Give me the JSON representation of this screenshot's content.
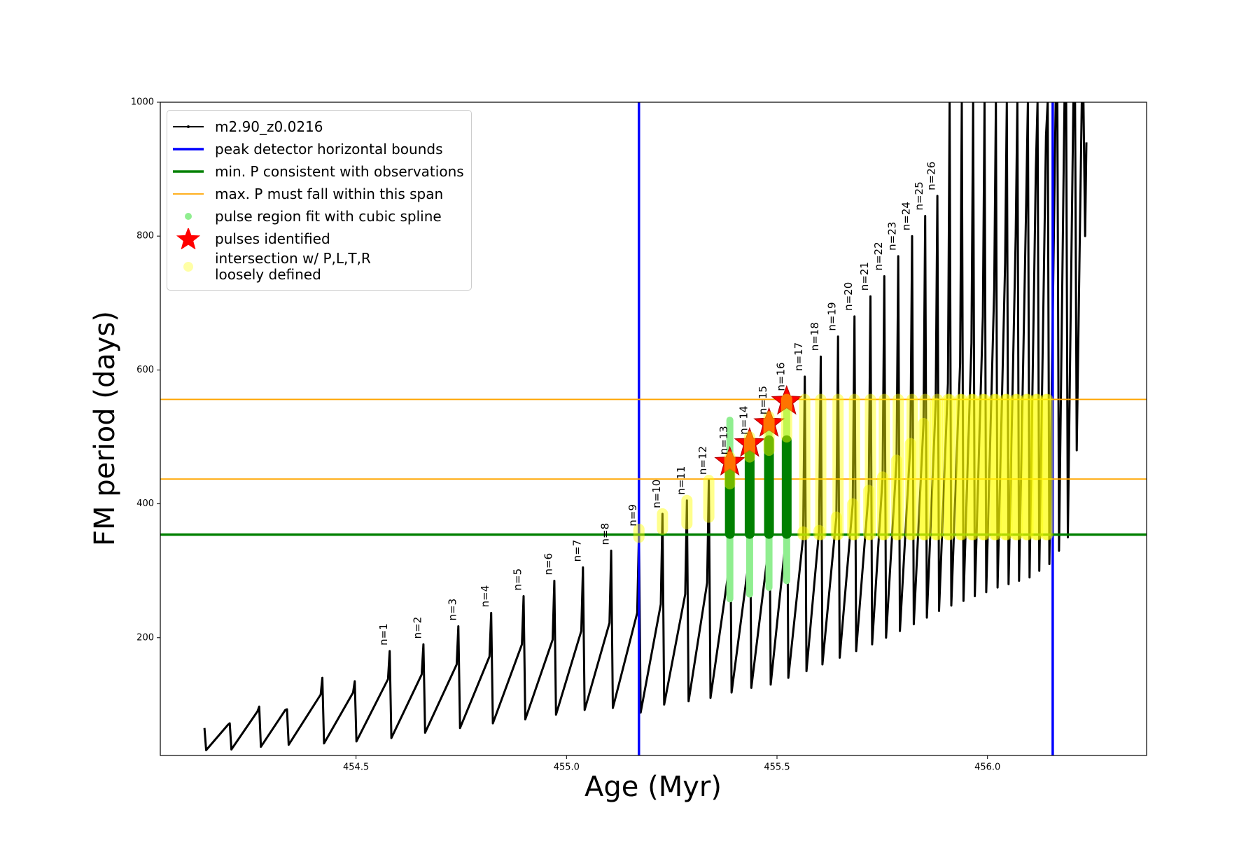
{
  "chart_data": {
    "type": "line",
    "xlabel": "Age (Myr)",
    "ylabel": "FM period (days)",
    "xlim": [
      454.035,
      456.378
    ],
    "ylim": [
      24,
      1000
    ],
    "xticks": [
      {
        "value": 454.5,
        "label": "454.5"
      },
      {
        "value": 455.0,
        "label": "455.0"
      },
      {
        "value": 455.5,
        "label": "455.5"
      },
      {
        "value": 456.0,
        "label": "456.0"
      }
    ],
    "yticks": [
      200,
      400,
      600,
      800,
      1000
    ],
    "grid": false,
    "legend": "upper left",
    "series": [
      {
        "name": "m2.90_z0.0216",
        "color": "#000000",
        "kind": "line",
        "x": [
          454.14,
          454.144,
          454.196,
          454.2,
          454.204,
          454.266,
          454.27,
          454.274,
          454.332,
          454.336,
          454.34,
          454.416,
          454.42,
          454.424,
          454.493,
          454.497,
          454.501,
          454.576,
          454.58,
          454.584,
          454.656,
          454.66,
          454.664,
          454.739,
          454.743,
          454.747,
          454.817,
          454.821,
          454.825,
          454.894,
          454.898,
          454.902,
          454.967,
          454.971,
          454.975,
          455.035,
          455.039,
          455.043,
          455.102,
          455.106,
          455.11,
          455.168,
          455.172,
          455.176,
          455.224,
          455.228,
          455.232,
          455.282,
          455.286,
          455.29,
          455.334,
          455.338,
          455.342,
          455.384,
          455.388,
          455.392,
          455.431,
          455.435,
          455.439,
          455.477,
          455.481,
          455.485,
          455.519,
          455.523,
          455.527,
          455.562,
          455.566,
          455.57,
          455.6,
          455.604,
          455.608,
          455.641,
          455.645,
          455.649,
          455.68,
          455.684,
          455.688,
          455.718,
          455.722,
          455.726,
          455.751,
          455.755,
          455.759,
          455.784,
          455.788,
          455.792,
          455.817,
          455.821,
          455.825,
          455.848,
          455.852,
          455.856,
          455.877,
          455.881,
          455.885,
          455.906,
          455.91,
          455.914,
          455.935,
          455.939,
          455.943,
          455.962,
          455.966,
          455.97,
          455.989,
          455.993,
          455.997,
          456.016,
          456.02,
          456.024,
          456.042,
          456.046,
          456.05,
          456.067,
          456.071,
          456.075,
          456.092,
          456.096,
          456.1,
          456.115,
          456.119,
          456.123,
          456.139,
          456.143,
          456.147,
          456.162,
          456.166,
          456.17,
          456.183,
          456.187,
          456.191,
          456.204,
          456.208,
          456.212,
          456.224,
          456.228,
          456.232,
          456.235
        ],
        "values": [
          65,
          32,
          70,
          72,
          33,
          90,
          97,
          37,
          92,
          93,
          40,
          115,
          140,
          42,
          118,
          135,
          45,
          138,
          180,
          50,
          145,
          190,
          58,
          160,
          217,
          65,
          172,
          237,
          72,
          190,
          262,
          78,
          197,
          285,
          85,
          210,
          305,
          92,
          222,
          330,
          95,
          237,
          358,
          88,
          250,
          385,
          100,
          265,
          405,
          105,
          282,
          435,
          110,
          295,
          465,
          118,
          305,
          495,
          125,
          320,
          525,
          130,
          335,
          560,
          140,
          350,
          590,
          150,
          360,
          620,
          160,
          380,
          650,
          170,
          400,
          680,
          180,
          420,
          710,
          190,
          440,
          740,
          200,
          465,
          770,
          210,
          490,
          800,
          220,
          520,
          830,
          230,
          550,
          860,
          240,
          580,
          1000,
          248,
          610,
          1000,
          255,
          640,
          1000,
          262,
          680,
          1000,
          268,
          720,
          1000,
          275,
          760,
          1000,
          280,
          800,
          1000,
          285,
          850,
          1000,
          290,
          900,
          1000,
          300,
          950,
          1000,
          310,
          1000,
          1000,
          330,
          1000,
          1000,
          350,
          1000,
          1000,
          480,
          1000,
          1000,
          800,
          940
        ]
      },
      {
        "name": "peak detector horizontal bounds",
        "color": "#0000ff",
        "kind": "vline",
        "x": [
          455.172,
          456.155
        ]
      },
      {
        "name": "min. P consistent with observations",
        "color": "#008000",
        "kind": "hline",
        "values": [
          354
        ]
      },
      {
        "name": "max. P must fall within this span",
        "color": "#ffa500",
        "kind": "hline",
        "values": [
          437,
          556
        ]
      },
      {
        "name": "pulse region fit with cubic spline",
        "color": "#90ee90",
        "kind": "range",
        "x": [
          455.388,
          455.435,
          455.481,
          455.523
        ],
        "low": [
          258,
          265,
          275,
          285
        ],
        "high": [
          525,
          500,
          530,
          540
        ]
      },
      {
        "color": "#008000",
        "kind": "range",
        "x": [
          455.388,
          455.435,
          455.481,
          455.523
        ],
        "low": [
          355,
          355,
          355,
          355
        ],
        "high": [
          465,
          492,
          495,
          495
        ]
      },
      {
        "name": "pulses identified",
        "color": "#ff0000",
        "kind": "star",
        "x": [
          455.388,
          455.435,
          455.481,
          455.523
        ],
        "values": [
          462,
          490,
          520,
          553
        ]
      },
      {
        "name": "intersection w/ P,L,T,R\nloosely defined",
        "color": "#ffff00",
        "kind": "range",
        "x": [
          455.172,
          455.228,
          455.286,
          455.338,
          455.388,
          455.435,
          455.481,
          455.523,
          455.566,
          455.604,
          455.645,
          455.684,
          455.722,
          455.755,
          455.788,
          455.821,
          455.852,
          455.881,
          455.91,
          455.939,
          455.966,
          455.993,
          456.02,
          456.046,
          456.071,
          456.096,
          456.119,
          456.143,
          455.562,
          455.6,
          455.641,
          455.68,
          455.718,
          455.751,
          455.784,
          455.817,
          455.848,
          455.877,
          455.906,
          455.935,
          455.962,
          455.989,
          456.016,
          456.042,
          456.067,
          456.092,
          456.115,
          456.139
        ],
        "low": [
          350,
          362,
          370,
          380,
          430,
          470,
          480,
          500,
          354,
          354,
          354,
          354,
          354,
          354,
          354,
          354,
          354,
          354,
          354,
          354,
          354,
          354,
          354,
          354,
          354,
          354,
          354,
          354,
          354,
          354,
          354,
          354,
          354,
          354,
          354,
          354,
          354,
          354,
          354,
          354,
          354,
          354,
          354,
          354,
          354,
          354,
          354,
          354
        ],
        "high": [
          362,
          385,
          405,
          435,
          470,
          500,
          530,
          556,
          556,
          556,
          556,
          556,
          556,
          556,
          556,
          556,
          556,
          556,
          556,
          556,
          556,
          556,
          556,
          556,
          556,
          556,
          556,
          556,
          358,
          360,
          380,
          400,
          420,
          440,
          465,
          490,
          520,
          550,
          556,
          556,
          556,
          556,
          556,
          556,
          556,
          556,
          556,
          556
        ]
      }
    ],
    "annotations": [
      {
        "text": "n=1",
        "x": 454.58,
        "y": 180
      },
      {
        "text": "n=2",
        "x": 454.66,
        "y": 190
      },
      {
        "text": "n=3",
        "x": 454.743,
        "y": 217
      },
      {
        "text": "n=4",
        "x": 454.821,
        "y": 237
      },
      {
        "text": "n=5",
        "x": 454.898,
        "y": 262
      },
      {
        "text": "n=6",
        "x": 454.971,
        "y": 285
      },
      {
        "text": "n=7",
        "x": 455.039,
        "y": 305
      },
      {
        "text": "n=8",
        "x": 455.106,
        "y": 330
      },
      {
        "text": "n=9",
        "x": 455.172,
        "y": 358
      },
      {
        "text": "n=10",
        "x": 455.228,
        "y": 385
      },
      {
        "text": "n=11",
        "x": 455.286,
        "y": 405
      },
      {
        "text": "n=12",
        "x": 455.338,
        "y": 435
      },
      {
        "text": "n=13",
        "x": 455.388,
        "y": 465
      },
      {
        "text": "n=14",
        "x": 455.435,
        "y": 495
      },
      {
        "text": "n=15",
        "x": 455.481,
        "y": 525
      },
      {
        "text": "n=16",
        "x": 455.523,
        "y": 560
      },
      {
        "text": "n=17",
        "x": 455.566,
        "y": 590
      },
      {
        "text": "n=18",
        "x": 455.604,
        "y": 620
      },
      {
        "text": "n=19",
        "x": 455.645,
        "y": 650
      },
      {
        "text": "n=20",
        "x": 455.684,
        "y": 680
      },
      {
        "text": "n=21",
        "x": 455.722,
        "y": 710
      },
      {
        "text": "n=22",
        "x": 455.755,
        "y": 740
      },
      {
        "text": "n=23",
        "x": 455.788,
        "y": 770
      },
      {
        "text": "n=24",
        "x": 455.821,
        "y": 800
      },
      {
        "text": "n=25",
        "x": 455.852,
        "y": 830
      },
      {
        "text": "n=26",
        "x": 455.881,
        "y": 860
      }
    ]
  }
}
